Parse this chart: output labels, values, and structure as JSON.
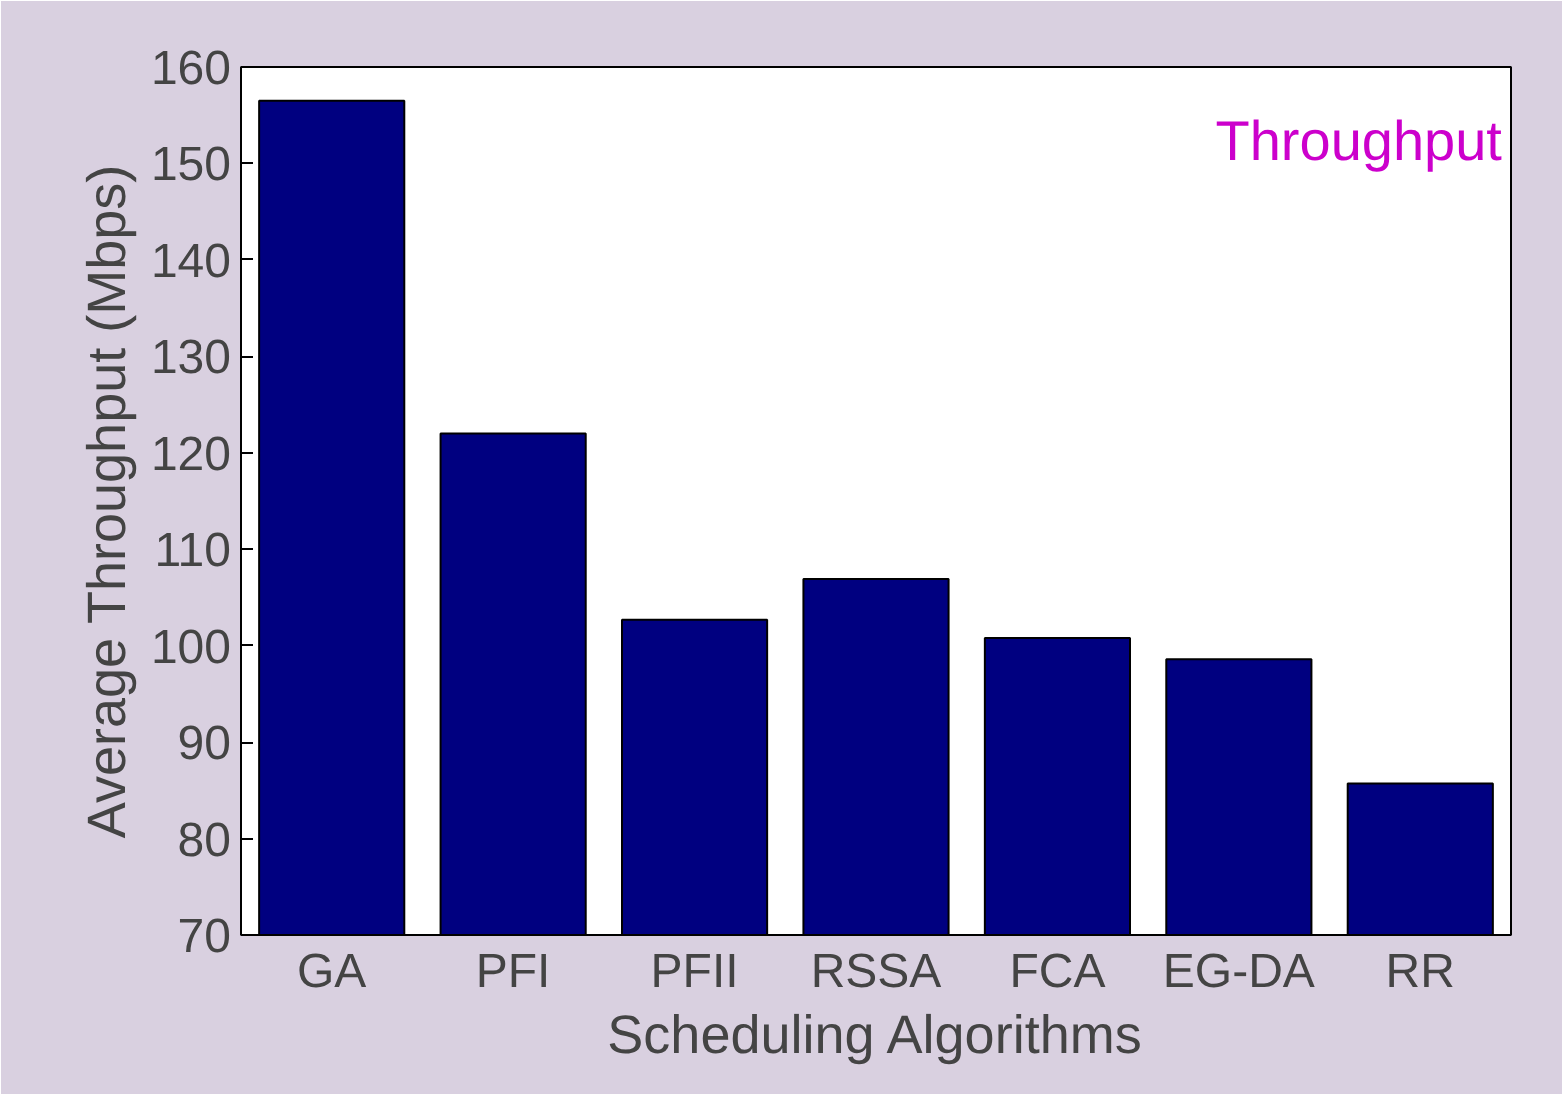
{
  "chart_data": {
    "type": "bar",
    "xlabel": "Scheduling Algorithms",
    "ylabel": "Average Throughput (Mbps)",
    "annotations": [
      "Throughput"
    ],
    "categories": [
      "GA",
      "PFI",
      "PFII",
      "RSSA",
      "FCA",
      "EG-DA",
      "RR"
    ],
    "values": [
      156.5,
      122,
      102.7,
      106.9,
      100.8,
      98.6,
      85.7
    ],
    "color": "#000080",
    "ylim": [
      70,
      160
    ],
    "yticks": [
      70,
      80,
      90,
      100,
      110,
      120,
      130,
      140,
      150,
      160
    ],
    "grid": false
  }
}
